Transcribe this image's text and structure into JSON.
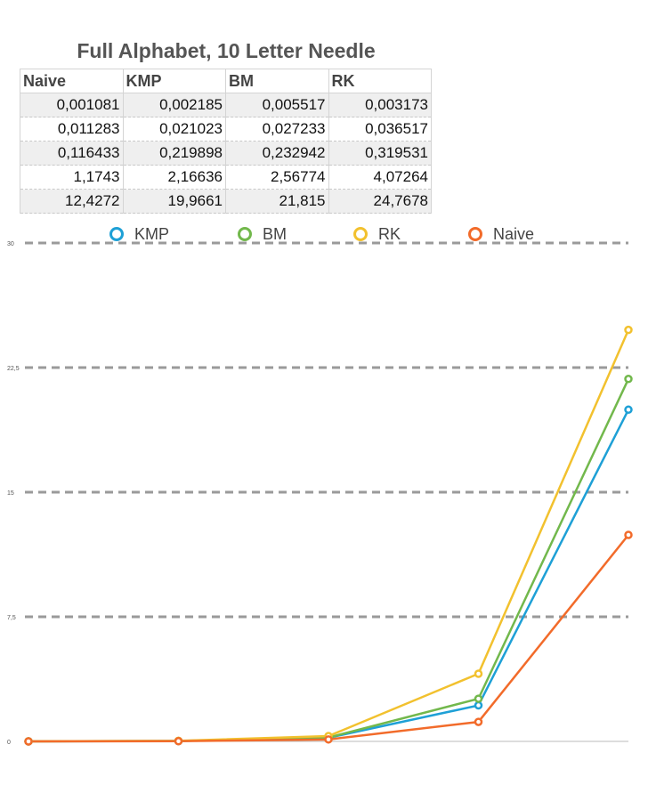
{
  "table": {
    "headers": [
      "Naive",
      "KMP",
      "BM",
      "RK"
    ],
    "rows": [
      [
        "0,001081",
        "0,002185",
        "0,005517",
        "0,003173"
      ],
      [
        "0,011283",
        "0,021023",
        "0,027233",
        "0,036517"
      ],
      [
        "0,116433",
        "0,219898",
        "0,232942",
        "0,319531"
      ],
      [
        "1,1743",
        "2,16636",
        "2,56774",
        "4,07264"
      ],
      [
        "12,4272",
        "19,9661",
        "21,815",
        "24,7678"
      ]
    ]
  },
  "chart_data": {
    "type": "line",
    "title": "Full Alphabet, 10 Letter Needle",
    "x": [
      1,
      2,
      3,
      4,
      5
    ],
    "ylim": [
      0,
      30
    ],
    "yticks": [
      0,
      7.5,
      15,
      22.5,
      30
    ],
    "ytick_labels": [
      "0",
      "7,5",
      "15",
      "22,5",
      "30"
    ],
    "grid": true,
    "legend_position": "top",
    "series": [
      {
        "name": "KMP",
        "color": "#1ea0d6",
        "values": [
          0.002185,
          0.021023,
          0.219898,
          2.16636,
          19.9661
        ]
      },
      {
        "name": "BM",
        "color": "#72b84c",
        "values": [
          0.005517,
          0.027233,
          0.232942,
          2.56774,
          21.815
        ]
      },
      {
        "name": "RK",
        "color": "#f2c12e",
        "values": [
          0.003173,
          0.036517,
          0.319531,
          4.07264,
          24.7678
        ]
      },
      {
        "name": "Naive",
        "color": "#f26b2a",
        "values": [
          0.001081,
          0.011283,
          0.116433,
          1.1743,
          12.4272
        ]
      }
    ]
  }
}
